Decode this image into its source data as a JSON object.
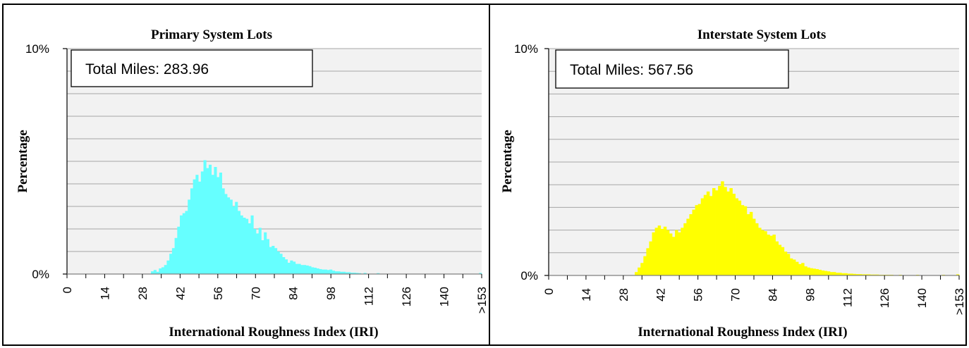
{
  "chart_data": [
    {
      "type": "bar",
      "title": "Primary System Lots",
      "xlabel": "International Roughness Index (IRI)",
      "ylabel": "Percentage",
      "annotation": "Total Miles: 283.96",
      "bar_color": "#66ffff",
      "plot_bg": "#f2f2f2",
      "grid": true,
      "ylim": [
        0,
        10
      ],
      "yticks": [
        {
          "value": 0,
          "label": "0%"
        },
        {
          "value": 10,
          "label": "10%"
        }
      ],
      "xticks": [
        "0",
        "14",
        "28",
        "42",
        "56",
        "70",
        "84",
        "98",
        "112",
        "126",
        "140",
        ">153"
      ],
      "x_start": 0,
      "x_step": 1,
      "values": [
        0,
        0,
        0,
        0,
        0,
        0,
        0,
        0,
        0,
        0,
        0,
        0,
        0,
        0,
        0,
        0,
        0,
        0,
        0,
        0,
        0,
        0,
        0,
        0,
        0,
        0,
        0,
        0,
        0,
        0,
        0,
        0,
        0.12,
        0.18,
        0.1,
        0.25,
        0.3,
        0.4,
        0.6,
        0.9,
        1.15,
        1.6,
        2.1,
        2.6,
        2.7,
        2.8,
        3.3,
        3.8,
        4.2,
        4.4,
        4.1,
        4.55,
        5.05,
        4.7,
        4.85,
        4.4,
        4.75,
        4.3,
        4.5,
        3.8,
        3.55,
        3.4,
        3.3,
        3.0,
        3.2,
        2.8,
        2.6,
        2.5,
        2.45,
        2.25,
        2.6,
        2.0,
        1.8,
        2.05,
        1.5,
        1.85,
        1.55,
        1.2,
        1.25,
        1.15,
        1.0,
        0.9,
        0.75,
        0.65,
        0.5,
        0.6,
        0.55,
        0.45,
        0.45,
        0.4,
        0.4,
        0.38,
        0.35,
        0.3,
        0.28,
        0.25,
        0.22,
        0.2,
        0.2,
        0.18,
        0.2,
        0.15,
        0.12,
        0.12,
        0.1,
        0.1,
        0.08,
        0.08,
        0.06,
        0.06,
        0.05,
        0.04,
        0,
        0.05,
        0,
        0,
        0,
        0,
        0.04,
        0,
        0,
        0,
        0,
        0,
        0,
        0,
        0,
        0,
        0,
        0,
        0,
        0,
        0,
        0,
        0,
        0,
        0,
        0,
        0,
        0,
        0,
        0,
        0,
        0,
        0,
        0,
        0,
        0,
        0,
        0,
        0,
        0,
        0,
        0,
        0,
        0,
        0,
        0.05
      ]
    },
    {
      "type": "bar",
      "title": "Interstate System Lots",
      "xlabel": "International Roughness Index (IRI)",
      "ylabel": "Percentage",
      "annotation": "Total Miles: 567.56",
      "bar_color": "#ffff00",
      "plot_bg": "#f2f2f2",
      "grid": true,
      "ylim": [
        0,
        10
      ],
      "yticks": [
        {
          "value": 0,
          "label": "0%"
        },
        {
          "value": 10,
          "label": "10%"
        }
      ],
      "xticks": [
        "0",
        "14",
        "28",
        "42",
        "56",
        "70",
        "84",
        "98",
        "112",
        "126",
        "140",
        ">153"
      ],
      "x_start": 0,
      "x_step": 1,
      "values": [
        0,
        0,
        0,
        0,
        0,
        0,
        0,
        0,
        0,
        0,
        0,
        0,
        0,
        0,
        0,
        0,
        0,
        0,
        0,
        0,
        0,
        0,
        0,
        0,
        0,
        0,
        0,
        0,
        0,
        0,
        0.15,
        0.35,
        0.55,
        0.85,
        1.2,
        1.5,
        1.9,
        2.1,
        2.2,
        2.05,
        2.15,
        2.0,
        1.85,
        1.7,
        2.0,
        1.9,
        2.1,
        2.3,
        2.5,
        2.7,
        2.9,
        3.1,
        3.15,
        3.4,
        3.55,
        3.7,
        3.5,
        3.85,
        3.75,
        3.95,
        4.15,
        3.9,
        3.7,
        3.85,
        3.6,
        3.4,
        3.3,
        3.1,
        3.05,
        2.7,
        2.8,
        2.5,
        2.3,
        2.1,
        2.0,
        1.95,
        1.8,
        1.75,
        1.8,
        1.5,
        1.35,
        1.25,
        1.05,
        0.95,
        0.75,
        0.7,
        0.6,
        0.5,
        0.55,
        0.4,
        0.35,
        0.32,
        0.3,
        0.28,
        0.25,
        0.22,
        0.2,
        0.18,
        0.15,
        0.15,
        0.12,
        0.12,
        0.1,
        0.1,
        0.08,
        0.08,
        0.07,
        0.06,
        0.06,
        0.05,
        0.05,
        0.05,
        0.04,
        0.04,
        0.04,
        0.03,
        0.03,
        0.03,
        0.03,
        0.03,
        0,
        0,
        0.03,
        0,
        0,
        0,
        0,
        0,
        0.03,
        0,
        0,
        0,
        0,
        0,
        0,
        0,
        0,
        0.03,
        0,
        0,
        0,
        0,
        0.05
      ]
    }
  ]
}
